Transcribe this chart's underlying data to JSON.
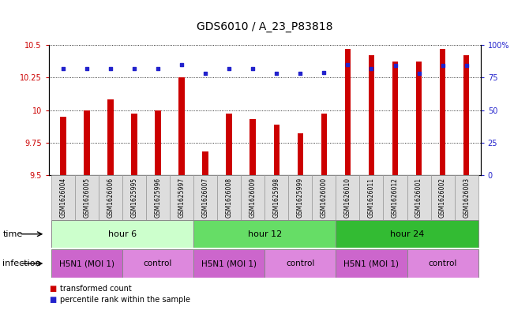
{
  "title": "GDS6010 / A_23_P83818",
  "samples": [
    "GSM1626004",
    "GSM1626005",
    "GSM1626006",
    "GSM1625995",
    "GSM1625996",
    "GSM1625997",
    "GSM1626007",
    "GSM1626008",
    "GSM1626009",
    "GSM1625998",
    "GSM1625999",
    "GSM1626000",
    "GSM1626010",
    "GSM1626011",
    "GSM1626012",
    "GSM1626001",
    "GSM1626002",
    "GSM1626003"
  ],
  "bar_values": [
    9.95,
    10.0,
    10.08,
    9.97,
    10.0,
    10.25,
    9.68,
    9.97,
    9.93,
    9.89,
    9.82,
    9.97,
    10.47,
    10.42,
    10.37,
    10.37,
    10.47,
    10.42
  ],
  "dot_values": [
    82,
    82,
    82,
    82,
    82,
    85,
    78,
    82,
    82,
    78,
    78,
    79,
    85,
    82,
    84,
    78,
    84,
    84
  ],
  "ylim_left": [
    9.5,
    10.5
  ],
  "ylim_right": [
    0,
    100
  ],
  "yticks_left": [
    9.5,
    9.75,
    10.0,
    10.25,
    10.5
  ],
  "ytick_labels_left": [
    "9.5",
    "9.75",
    "10",
    "10.25",
    "10.5"
  ],
  "yticks_right": [
    0,
    25,
    50,
    75,
    100
  ],
  "ytick_labels_right": [
    "0",
    "25",
    "50",
    "75",
    "100%"
  ],
  "bar_color": "#cc0000",
  "dot_color": "#2222cc",
  "time_colors": [
    "#ccffcc",
    "#66dd66",
    "#33bb33"
  ],
  "time_groups": [
    {
      "label": "hour 6",
      "start": 0,
      "end": 6
    },
    {
      "label": "hour 12",
      "start": 6,
      "end": 12
    },
    {
      "label": "hour 24",
      "start": 12,
      "end": 18
    }
  ],
  "infection_h5n1_color": "#cc66cc",
  "infection_ctrl_color": "#dd88dd",
  "infection_groups": [
    {
      "label": "H5N1 (MOI 1)",
      "start": 0,
      "end": 3,
      "type": "h5n1"
    },
    {
      "label": "control",
      "start": 3,
      "end": 6,
      "type": "ctrl"
    },
    {
      "label": "H5N1 (MOI 1)",
      "start": 6,
      "end": 9,
      "type": "h5n1"
    },
    {
      "label": "control",
      "start": 9,
      "end": 12,
      "type": "ctrl"
    },
    {
      "label": "H5N1 (MOI 1)",
      "start": 12,
      "end": 15,
      "type": "h5n1"
    },
    {
      "label": "control",
      "start": 15,
      "end": 18,
      "type": "ctrl"
    }
  ],
  "legend_bar_label": "transformed count",
  "legend_dot_label": "percentile rank within the sample",
  "title_fontsize": 10,
  "tick_fontsize": 7,
  "label_fontsize": 8,
  "row_label_fontsize": 8,
  "sample_fontsize": 5.5,
  "group_fontsize": 8
}
